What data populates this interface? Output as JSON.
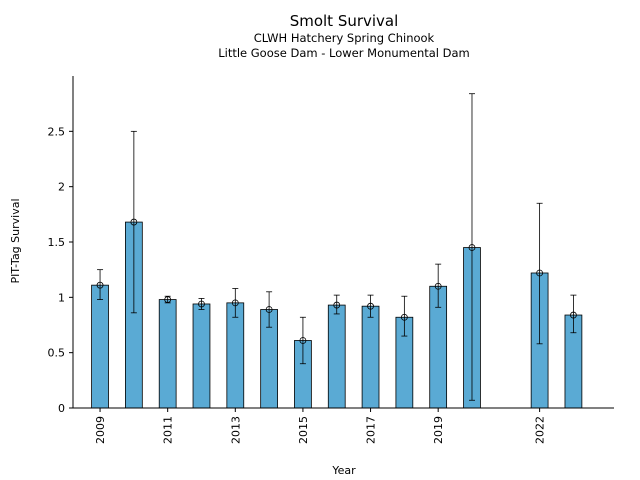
{
  "chart_data": {
    "type": "bar",
    "title": "Smolt Survival",
    "subtitle": [
      "CLWH Hatchery Spring Chinook",
      "Little Goose Dam - Lower Monumental Dam"
    ],
    "xlabel": "Year",
    "ylabel": "PIT-Tag Survival",
    "ylim": [
      0,
      3.0
    ],
    "yticks": [
      "0",
      "0.5",
      "1",
      "1.5",
      "2",
      "2.5"
    ],
    "xticks": [
      "2009",
      "2011",
      "2013",
      "2015",
      "2017",
      "2019",
      "2022"
    ],
    "grid": false,
    "bar_color": "#5aaad4",
    "edge_color": "#000000",
    "points": [
      {
        "x": 2009,
        "y": 1.11,
        "lo": 0.98,
        "hi": 1.25
      },
      {
        "x": 2010,
        "y": 1.68,
        "lo": 0.86,
        "hi": 2.5
      },
      {
        "x": 2011,
        "y": 0.98,
        "lo": 0.95,
        "hi": 1.01
      },
      {
        "x": 2012,
        "y": 0.94,
        "lo": 0.89,
        "hi": 0.99
      },
      {
        "x": 2013,
        "y": 0.95,
        "lo": 0.82,
        "hi": 1.08
      },
      {
        "x": 2014,
        "y": 0.89,
        "lo": 0.73,
        "hi": 1.05
      },
      {
        "x": 2015,
        "y": 0.61,
        "lo": 0.4,
        "hi": 0.82
      },
      {
        "x": 2016,
        "y": 0.93,
        "lo": 0.85,
        "hi": 1.02
      },
      {
        "x": 2017,
        "y": 0.92,
        "lo": 0.82,
        "hi": 1.02
      },
      {
        "x": 2018,
        "y": 0.82,
        "lo": 0.65,
        "hi": 1.01
      },
      {
        "x": 2019,
        "y": 1.1,
        "lo": 0.91,
        "hi": 1.3
      },
      {
        "x": 2020,
        "y": 1.45,
        "lo": 0.07,
        "hi": 2.84
      },
      {
        "x": 2022,
        "y": 1.22,
        "lo": 0.58,
        "hi": 1.85
      },
      {
        "x": 2023,
        "y": 0.84,
        "lo": 0.68,
        "hi": 1.02
      }
    ]
  }
}
